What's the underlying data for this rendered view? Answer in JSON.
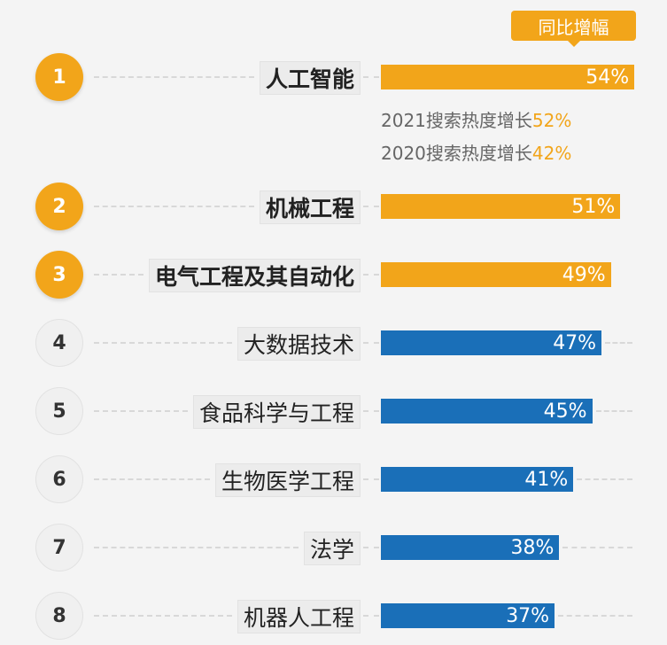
{
  "chart_data": {
    "type": "bar",
    "title": "",
    "legend_badge": "同比增幅",
    "categories": [
      "人工智能",
      "机械工程",
      "电气工程及其自动化",
      "大数据技术",
      "食品科学与工程",
      "生物医学工程",
      "法学",
      "机器人工程"
    ],
    "ranks": [
      "1",
      "2",
      "3",
      "4",
      "5",
      "6",
      "7",
      "8"
    ],
    "values": [
      54,
      51,
      49,
      47,
      45,
      41,
      38,
      37
    ],
    "value_labels": [
      "54%",
      "51%",
      "49%",
      "47%",
      "45%",
      "41%",
      "38%",
      "37%"
    ],
    "colors": {
      "top": "#f2a51a",
      "rest": "#1a6fb8"
    },
    "annotations": [
      {
        "text": "2021搜索热度增长",
        "value": "52%"
      },
      {
        "text": "2020搜索热度增长",
        "value": "42%"
      }
    ]
  }
}
